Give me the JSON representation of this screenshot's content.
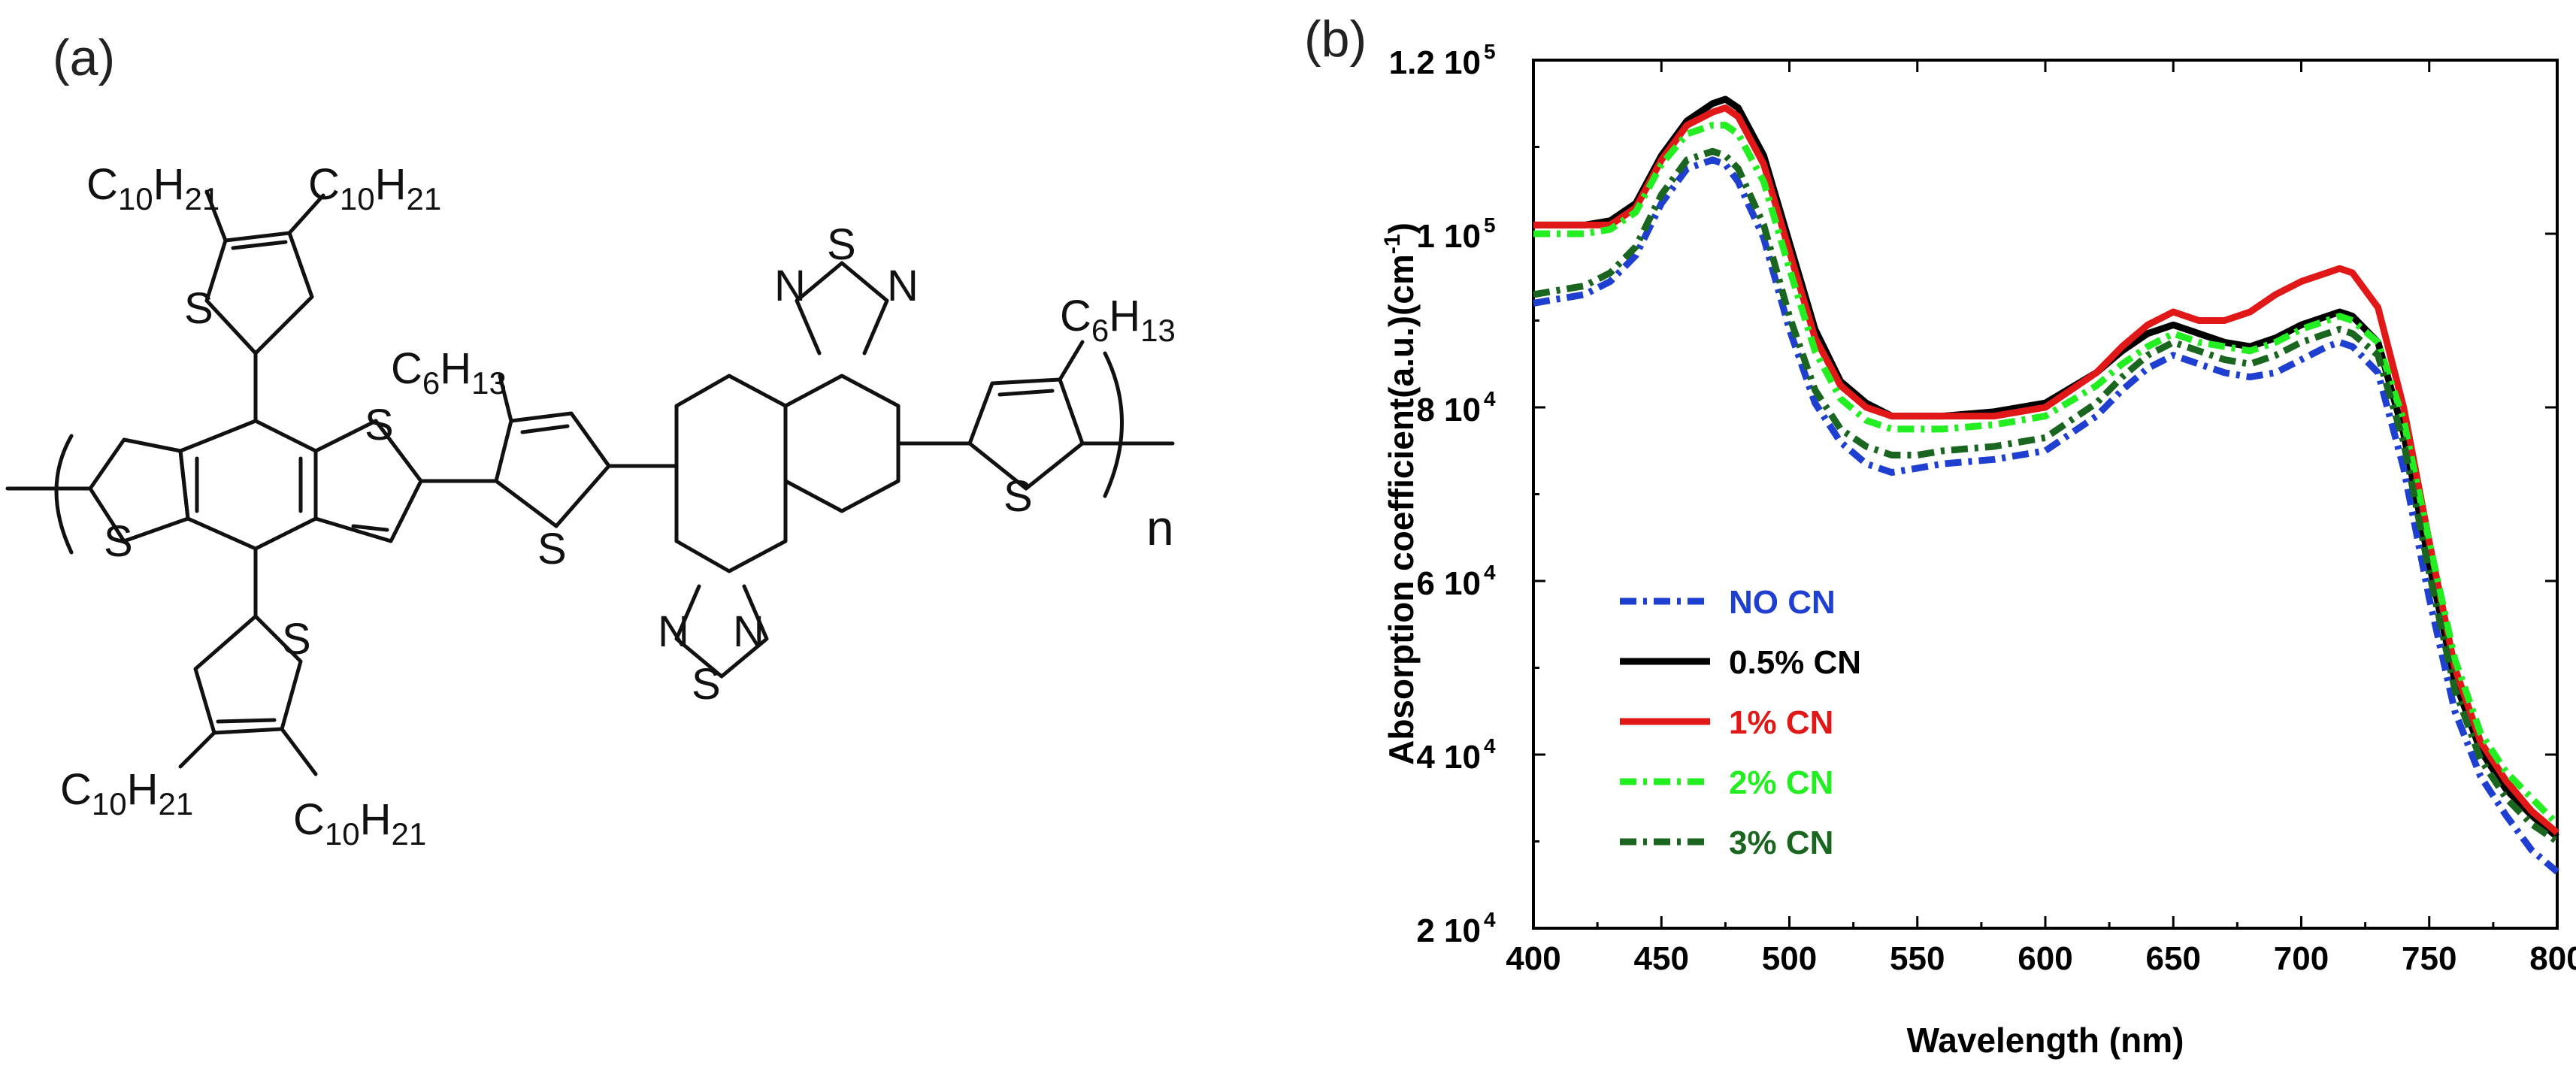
{
  "panels": {
    "a_label": "(a)",
    "b_label": "(b)"
  },
  "structure": {
    "sulfur": "S",
    "nitrogen": "N",
    "repeat_index": "n",
    "groups": [
      {
        "C": "C",
        "c_sub": "10",
        "H": "H",
        "h_sub": "21"
      },
      {
        "C": "C",
        "c_sub": "10",
        "H": "H",
        "h_sub": "21"
      },
      {
        "C": "C",
        "c_sub": "6",
        "H": "H",
        "h_sub": "13"
      },
      {
        "C": "C",
        "c_sub": "6",
        "H": "H",
        "h_sub": "13"
      },
      {
        "C": "C",
        "c_sub": "10",
        "H": "H",
        "h_sub": "21"
      },
      {
        "C": "C",
        "c_sub": "10",
        "H": "H",
        "h_sub": "21"
      }
    ]
  },
  "chart_data": {
    "type": "line",
    "xlabel": "Wavelength (nm)",
    "ylabel": "Absorption coefficient(a.u.)(cm",
    "ylabel_sup": "-1",
    "ylabel_suffix": ")",
    "xlim": [
      400,
      800
    ],
    "ylim": [
      20000,
      120000
    ],
    "x_ticks": [
      400,
      450,
      500,
      550,
      600,
      650,
      700,
      750,
      800
    ],
    "y_ticks": [
      {
        "value": 20000,
        "mant": "2 10",
        "exp": "4"
      },
      {
        "value": 40000,
        "mant": "4 10",
        "exp": "4"
      },
      {
        "value": 60000,
        "mant": "6 10",
        "exp": "4"
      },
      {
        "value": 80000,
        "mant": "8 10",
        "exp": "4"
      },
      {
        "value": 100000,
        "mant": "1 10",
        "exp": "5"
      },
      {
        "value": 120000,
        "mant": "1.2 10",
        "exp": "5"
      }
    ],
    "legend_position": "bottom-left",
    "x": [
      400,
      420,
      430,
      440,
      450,
      460,
      470,
      475,
      480,
      490,
      500,
      510,
      520,
      530,
      540,
      550,
      560,
      580,
      600,
      620,
      630,
      640,
      650,
      660,
      670,
      680,
      690,
      700,
      710,
      715,
      720,
      730,
      740,
      750,
      760,
      770,
      780,
      790,
      800
    ],
    "series": [
      {
        "name": "NO CN",
        "color": "#1f3fd0",
        "dash": "dashdot",
        "values": [
          92000,
          93000,
          94500,
          97500,
          103500,
          107500,
          108500,
          108000,
          106000,
          99500,
          89000,
          80500,
          76000,
          73500,
          72500,
          73000,
          73500,
          74000,
          75000,
          79000,
          82000,
          84500,
          86000,
          85000,
          84000,
          83500,
          84000,
          85500,
          87000,
          87500,
          87000,
          84000,
          73000,
          58000,
          45000,
          37500,
          33000,
          29000,
          26500
        ]
      },
      {
        "name": "0.5% CN",
        "color": "#000000",
        "dash": "solid",
        "values": [
          101000,
          101000,
          101500,
          103500,
          109000,
          113000,
          115000,
          115500,
          114500,
          109000,
          99000,
          89000,
          83000,
          80500,
          79000,
          79000,
          79000,
          79500,
          80500,
          84000,
          86500,
          88500,
          89500,
          88500,
          87500,
          87000,
          88000,
          89500,
          90500,
          91000,
          90500,
          87500,
          77000,
          62000,
          48500,
          40500,
          36000,
          33000,
          30500
        ]
      },
      {
        "name": "1% CN",
        "color": "#e01818",
        "dash": "solid",
        "values": [
          101000,
          101000,
          101000,
          103000,
          108500,
          112500,
          114000,
          114500,
          113500,
          108000,
          98000,
          88000,
          82500,
          80000,
          79000,
          79000,
          79000,
          79000,
          80000,
          84000,
          87000,
          89500,
          91000,
          90000,
          90000,
          91000,
          93000,
          94500,
          95500,
          96000,
          95500,
          91500,
          80000,
          64500,
          50000,
          41500,
          37000,
          33500,
          31000
        ]
      },
      {
        "name": "2% CN",
        "color": "#22ee22",
        "dash": "dashdot",
        "values": [
          100000,
          100000,
          100500,
          102500,
          108000,
          111500,
          112500,
          112500,
          111500,
          106000,
          96000,
          86500,
          81000,
          78500,
          77500,
          77500,
          77500,
          78000,
          79000,
          82500,
          85000,
          87000,
          88500,
          87500,
          87000,
          86500,
          87500,
          89000,
          90000,
          90500,
          90000,
          87500,
          78500,
          64500,
          51000,
          42500,
          38000,
          35000,
          32000
        ]
      },
      {
        "name": "3% CN",
        "color": "#1a6620",
        "dash": "dashdot",
        "values": [
          93000,
          94000,
          95500,
          98500,
          104500,
          108500,
          109500,
          109000,
          107500,
          101000,
          90500,
          82000,
          77500,
          75500,
          74500,
          74500,
          75000,
          75500,
          76500,
          80500,
          83500,
          86000,
          87500,
          86500,
          85500,
          85000,
          86000,
          87500,
          88500,
          89000,
          88500,
          86000,
          76000,
          61000,
          47500,
          39500,
          35000,
          32000,
          30000
        ]
      }
    ]
  }
}
